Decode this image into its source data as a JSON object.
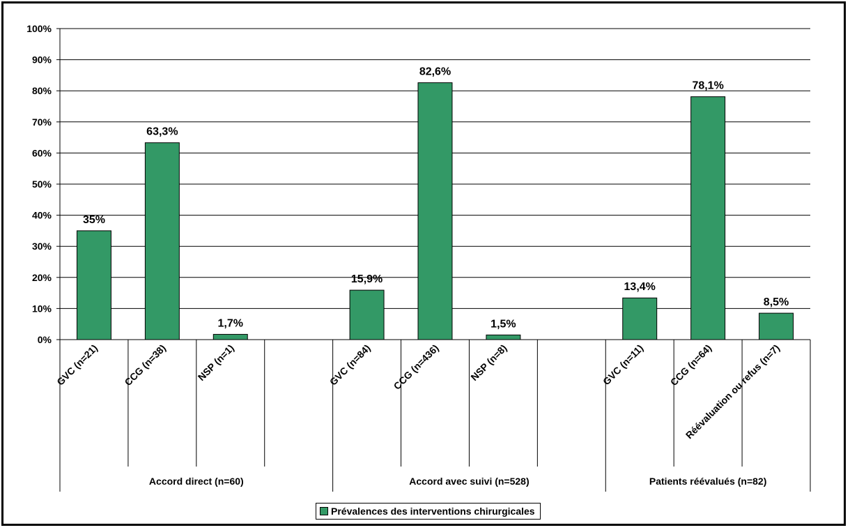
{
  "colors": {
    "bar": "#339966",
    "bar_stroke": "#000000",
    "grid": "#000000"
  },
  "chart_data": {
    "type": "bar",
    "title": "",
    "xlabel": "",
    "ylabel": "",
    "ylim": [
      0,
      100
    ],
    "yticks": [
      "0%",
      "10%",
      "20%",
      "30%",
      "40%",
      "50%",
      "60%",
      "70%",
      "80%",
      "90%",
      "100%"
    ],
    "grid": true,
    "legend_position": "bottom",
    "groups": [
      {
        "name": "Accord direct (n=60)",
        "categories": [
          "GVC (n=21)",
          "CCG (n=38)",
          "NSP (n=1)",
          ""
        ]
      },
      {
        "name": "Accord avec suivi (n=528)",
        "categories": [
          "GVC (n=84)",
          "CCG (n=436)",
          "NSP (n=8)",
          ""
        ]
      },
      {
        "name": "Patients réévalués (n=82)",
        "categories": [
          "GVC (n=11)",
          "CCG (n=64)",
          "Réévaluation ou refus (n=7)"
        ]
      }
    ],
    "series": [
      {
        "name": "Prévalences des interventions chirurgicales",
        "values": [
          35,
          63.3,
          1.7,
          null,
          15.9,
          82.6,
          1.5,
          null,
          13.4,
          78.1,
          8.5
        ],
        "labels": [
          "35%",
          "63,3%",
          "1,7%",
          "",
          "15,9%",
          "82,6%",
          "1,5%",
          "",
          "13,4%",
          "78,1%",
          "8,5%"
        ]
      }
    ]
  }
}
